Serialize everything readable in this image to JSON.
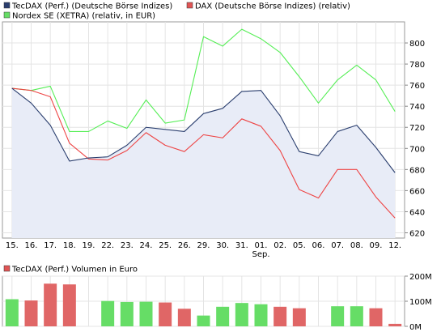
{
  "chart_data": [
    {
      "type": "line",
      "legend": [
        {
          "name": "TecDAX (Perf.) (Deutsche Börse Indizes)",
          "color": "#2a3e6e"
        },
        {
          "name": "DAX (Deutsche Börse Indizes) (relativ)",
          "color": "#e05555"
        },
        {
          "name": "Nordex SE (XETRA) (relativ, in EUR)",
          "color": "#66dd66"
        }
      ],
      "legend_position": "top-left",
      "categories": [
        "15.",
        "16.",
        "17.",
        "18.",
        "19.",
        "22.",
        "23.",
        "24.",
        "25.",
        "26.",
        "29.",
        "30.",
        "31.",
        "01.",
        "02.",
        "05.",
        "06.",
        "07.",
        "08.",
        "09.",
        "12."
      ],
      "month_label": {
        "text": "Sep.",
        "index": 13
      },
      "yticks": [
        620,
        640,
        660,
        680,
        700,
        720,
        740,
        760,
        780,
        800
      ],
      "ylim": [
        615,
        820
      ],
      "grid": true,
      "axis_side": "right",
      "series": [
        {
          "name": "TecDAX (Perf.) (Deutsche Börse Indizes)",
          "color": "#2a3e6e",
          "fill": "#e8ecf7",
          "values": [
            757,
            743,
            722,
            688,
            691,
            692,
            703,
            720,
            718,
            716,
            733,
            738,
            754,
            755,
            731,
            697,
            693,
            716,
            722,
            701,
            677
          ]
        },
        {
          "name": "DAX (Deutsche Börse Indizes) (relativ)",
          "color": "#ee4444",
          "values": [
            757,
            755,
            749,
            705,
            690,
            689,
            698,
            715,
            703,
            697,
            713,
            710,
            728,
            721,
            698,
            661,
            653,
            680,
            680,
            654,
            634
          ]
        },
        {
          "name": "Nordex SE (XETRA) (relativ, in EUR)",
          "color": "#55ee55",
          "values": [
            757,
            755,
            759,
            716,
            716,
            726,
            719,
            746,
            724,
            727,
            806,
            797,
            813,
            804,
            791,
            768,
            743,
            765,
            779,
            765,
            735
          ]
        }
      ]
    },
    {
      "type": "bar",
      "legend": [
        {
          "name": "TecDAX (Perf.) Volumen in Euro",
          "color": "#e05555"
        }
      ],
      "categories": [
        "15.",
        "16.",
        "17.",
        "18.",
        "19.",
        "22.",
        "23.",
        "24.",
        "25.",
        "26.",
        "29.",
        "30.",
        "31.",
        "01.",
        "02.",
        "05.",
        "06.",
        "07.",
        "08.",
        "09.",
        "12."
      ],
      "yticks": [
        "0M",
        "100M",
        "200M"
      ],
      "ylim": [
        0,
        200
      ],
      "values": [
        108,
        103,
        170,
        167,
        0,
        101,
        97,
        98,
        95,
        70,
        43,
        78,
        93,
        88,
        78,
        72,
        0,
        80,
        80,
        72,
        10
      ],
      "colors": [
        "#66dd66",
        "#e06666",
        "#e06666",
        "#e06666",
        "#66dd66",
        "#66dd66",
        "#66dd66",
        "#66dd66",
        "#e06666",
        "#e06666",
        "#66dd66",
        "#66dd66",
        "#66dd66",
        "#66dd66",
        "#e06666",
        "#e06666",
        "#e06666",
        "#66dd66",
        "#66dd66",
        "#e06666",
        "#e06666"
      ]
    }
  ]
}
